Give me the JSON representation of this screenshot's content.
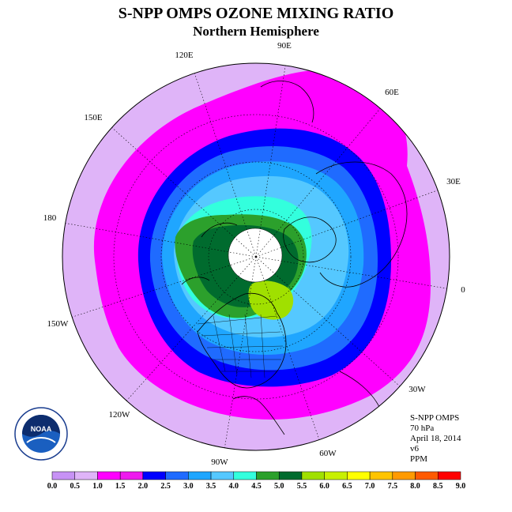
{
  "title": "S-NPP OMPS OZONE MIXING RATIO",
  "subtitle": "Northern Hemisphere",
  "longitude_labels": [
    "90E",
    "60E",
    "30E",
    "0",
    "30W",
    "60W",
    "90W",
    "120W",
    "150W",
    "180",
    "150E",
    "120E"
  ],
  "info": {
    "instrument": "S-NPP OMPS",
    "pressure": "70 hPa",
    "date": "April 18, 2014",
    "version": "v6",
    "units": "PPM"
  },
  "logo_text": "NOAA",
  "colorbar": {
    "ticks": [
      "0.0",
      "0.5",
      "1.0",
      "1.5",
      "2.0",
      "2.5",
      "3.0",
      "3.5",
      "4.0",
      "4.5",
      "5.0",
      "5.5",
      "6.0",
      "6.5",
      "7.0",
      "7.5",
      "8.0",
      "8.5",
      "9.0"
    ],
    "colors": [
      "#c792f5",
      "#dfb4f8",
      "#ff00ff",
      "#ee1aee",
      "#0000ff",
      "#1f6bff",
      "#1fa6ff",
      "#55c8ff",
      "#33ffdd",
      "#2ca02c",
      "#006b2e",
      "#a0e000",
      "#c8f000",
      "#ffff00",
      "#ffc400",
      "#ff9a00",
      "#ff5a00",
      "#ff0000",
      "#8b5a2b"
    ]
  }
}
